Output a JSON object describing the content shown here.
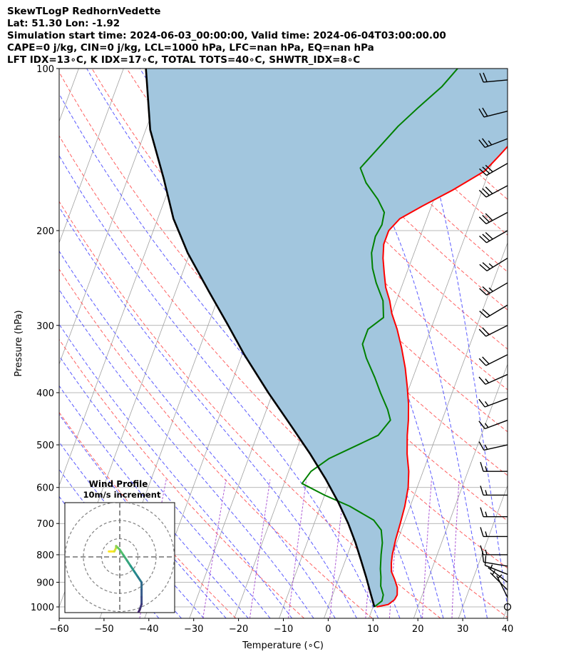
{
  "header": {
    "line1": "SkewTLogP RedhornVedette",
    "line2": "Lat: 51.30   Lon: -1.92",
    "line3": "Simulation start time: 2024-06-03_00:00:00, Valid time: 2024-06-04T03:00:00.00",
    "line4": "CAPE=0 j/kg, CIN=0 j/kg, LCL=1000 hPa, LFC=nan hPa, EQ=nan hPa",
    "line5": "LFT IDX=13∘C, K IDX=17∘C, TOTAL TOTS=40∘C, SHWTR_IDX=8∘C"
  },
  "chart_data": [
    {
      "type": "line",
      "subtype": "skew-t log-p",
      "xlabel": "Temperature (∘C)",
      "ylabel": "Pressure (hPa)",
      "xlim": [
        -60,
        40
      ],
      "ylim": [
        1050,
        100
      ],
      "yscale": "log",
      "xticks": [
        "−60",
        "−50",
        "−40",
        "−30",
        "−20",
        "−10",
        "0",
        "10",
        "20",
        "30",
        "40"
      ],
      "yticks": [
        "100",
        "200",
        "300",
        "400",
        "500",
        "600",
        "700",
        "800",
        "900",
        "1000"
      ],
      "colors": {
        "temperature": "#ff0000",
        "dewpoint": "#008000",
        "parcel": "#000000",
        "fill": "#a2c6de",
        "isotherm": "#a0a0a0",
        "dry_adiabat": "#ff6060",
        "moist_adiabat": "#5a5aff",
        "mixing_ratio": "#9933cc"
      },
      "series": [
        {
          "role": "temperature",
          "points": [
            [
              10.8,
              1000
            ],
            [
              13.2,
              990
            ],
            [
              14.2,
              970
            ],
            [
              14.4,
              950
            ],
            [
              13.8,
              920
            ],
            [
              12.6,
              890
            ],
            [
              11.2,
              860
            ],
            [
              10.5,
              830
            ],
            [
              10.0,
              800
            ],
            [
              9.5,
              750
            ],
            [
              9.2,
              700
            ],
            [
              8.8,
              650
            ],
            [
              8.0,
              600
            ],
            [
              6.8,
              560
            ],
            [
              5.0,
              520
            ],
            [
              3.5,
              480
            ],
            [
              2.5,
              450
            ],
            [
              1.2,
              420
            ],
            [
              -0.5,
              390
            ],
            [
              -2.5,
              360
            ],
            [
              -5.0,
              330
            ],
            [
              -7.5,
              305
            ],
            [
              -10.0,
              285
            ],
            [
              -11.5,
              270
            ],
            [
              -13.5,
              255
            ],
            [
              -15.0,
              240
            ],
            [
              -16.5,
              225
            ],
            [
              -17.5,
              212
            ],
            [
              -17.5,
              200
            ],
            [
              -16.0,
              190
            ],
            [
              -12.0,
              180
            ],
            [
              -6.5,
              168
            ],
            [
              -1.0,
              155
            ],
            [
              1.0,
              145
            ],
            [
              3.0,
              135
            ],
            [
              4.0,
              125
            ],
            [
              5.0,
              115
            ],
            [
              5.0,
              105
            ],
            [
              4.5,
              100
            ]
          ]
        },
        {
          "role": "dewpoint",
          "points": [
            [
              10.3,
              1000
            ],
            [
              11.5,
              975
            ],
            [
              11.3,
              950
            ],
            [
              10.0,
              915
            ],
            [
              9.3,
              880
            ],
            [
              8.5,
              850
            ],
            [
              7.5,
              800
            ],
            [
              6.8,
              760
            ],
            [
              5.5,
              720
            ],
            [
              3.0,
              690
            ],
            [
              -3.5,
              650
            ],
            [
              -10.0,
              620
            ],
            [
              -16.0,
              590
            ],
            [
              -15.0,
              560
            ],
            [
              -12.0,
              530
            ],
            [
              -3.0,
              480
            ],
            [
              -1.5,
              450
            ],
            [
              -3.0,
              430
            ],
            [
              -6.0,
              400
            ],
            [
              -8.5,
              375
            ],
            [
              -12.0,
              345
            ],
            [
              -14.0,
              325
            ],
            [
              -14.0,
              305
            ],
            [
              -11.5,
              290
            ],
            [
              -13.0,
              270
            ],
            [
              -16.0,
              250
            ],
            [
              -18.0,
              235
            ],
            [
              -19.5,
              220
            ],
            [
              -20.0,
              205
            ],
            [
              -19.5,
              195
            ],
            [
              -20.0,
              185
            ],
            [
              -22.5,
              175
            ],
            [
              -26.5,
              163
            ],
            [
              -29.0,
              153
            ],
            [
              -26.5,
              140
            ],
            [
              -24.0,
              128
            ],
            [
              -21.0,
              118
            ],
            [
              -17.5,
              108
            ],
            [
              -15.5,
              100
            ]
          ]
        },
        {
          "role": "parcel",
          "points": [
            [
              10.3,
              1000
            ],
            [
              8.2,
              940
            ],
            [
              6.0,
              880
            ],
            [
              3.5,
              820
            ],
            [
              0.8,
              760
            ],
            [
              -2.4,
              700
            ],
            [
              -6.3,
              640
            ],
            [
              -11.0,
              580
            ],
            [
              -16.6,
              520
            ],
            [
              -23.3,
              460
            ],
            [
              -31.0,
              400
            ],
            [
              -39.5,
              340
            ],
            [
              -45.5,
              300
            ],
            [
              -52.5,
              260
            ],
            [
              -60.5,
              220
            ],
            [
              -66.5,
              190
            ],
            [
              -72.0,
              160
            ],
            [
              -79.0,
              130
            ],
            [
              -85.0,
              100
            ]
          ]
        }
      ]
    },
    {
      "type": "hodograph",
      "title": "Wind Profile",
      "subtitle": "10m/s increment",
      "rings": [
        10,
        20,
        30
      ],
      "points": [
        [
          -6,
          3
        ],
        [
          -3,
          3
        ],
        [
          -2,
          5
        ],
        [
          -2,
          6
        ],
        [
          -1,
          5
        ],
        [
          0,
          4
        ],
        [
          2,
          1
        ],
        [
          4,
          -2
        ],
        [
          6,
          -5
        ],
        [
          8,
          -8
        ],
        [
          10,
          -11
        ],
        [
          12,
          -14
        ],
        [
          12,
          -18
        ],
        [
          12,
          -22
        ],
        [
          12,
          -26
        ],
        [
          11,
          -29
        ],
        [
          10,
          -31
        ],
        [
          9,
          -32
        ]
      ]
    },
    {
      "type": "wind_barbs",
      "barbs": [
        {
          "p": 1000,
          "u": 0,
          "v": 0
        },
        {
          "p": 960,
          "u": -2,
          "v": 4
        },
        {
          "p": 930,
          "u": -3,
          "v": 3
        },
        {
          "p": 900,
          "u": -4,
          "v": 3
        },
        {
          "p": 870,
          "u": -5,
          "v": 2
        },
        {
          "p": 840,
          "u": -6,
          "v": 1
        },
        {
          "p": 800,
          "u": -8,
          "v": 0
        },
        {
          "p": 740,
          "u": -10,
          "v": 0
        },
        {
          "p": 680,
          "u": -10,
          "v": 0
        },
        {
          "p": 620,
          "u": -10,
          "v": 0
        },
        {
          "p": 560,
          "u": -10,
          "v": 0
        },
        {
          "p": 500,
          "u": -9,
          "v": -2
        },
        {
          "p": 450,
          "u": -8,
          "v": -3
        },
        {
          "p": 410,
          "u": -8,
          "v": -3
        },
        {
          "p": 370,
          "u": -9,
          "v": -4
        },
        {
          "p": 340,
          "u": -10,
          "v": -5
        },
        {
          "p": 300,
          "u": -10,
          "v": -5
        },
        {
          "p": 275,
          "u": -10,
          "v": -6
        },
        {
          "p": 250,
          "u": -12,
          "v": -7
        },
        {
          "p": 225,
          "u": -13,
          "v": -8
        },
        {
          "p": 200,
          "u": -14,
          "v": -8
        },
        {
          "p": 185,
          "u": -15,
          "v": -8
        },
        {
          "p": 165,
          "u": -15,
          "v": -8
        },
        {
          "p": 150,
          "u": -14,
          "v": -8
        },
        {
          "p": 135,
          "u": -13,
          "v": -5
        },
        {
          "p": 120,
          "u": -12,
          "v": -3
        },
        {
          "p": 105,
          "u": -11,
          "v": -1
        }
      ]
    }
  ]
}
